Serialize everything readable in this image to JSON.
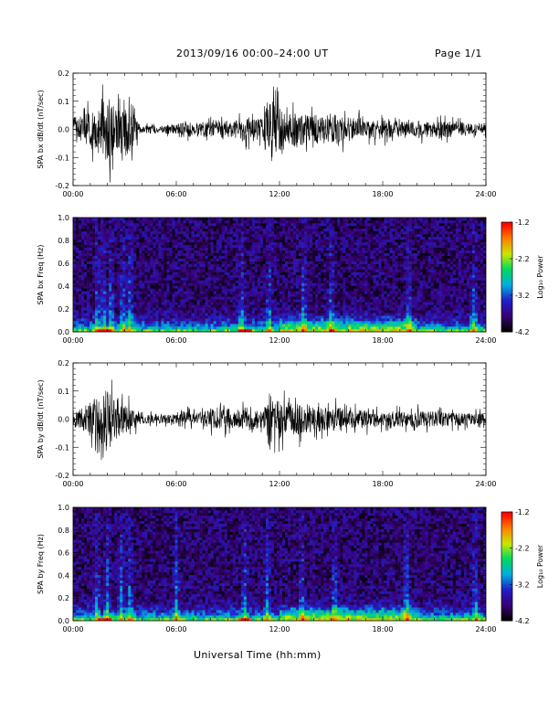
{
  "header": {
    "title": "2013/09/16  00:00–24:00 UT",
    "page": "Page 1/1"
  },
  "x_axis_title": "Universal Time (hh:mm)",
  "colorbar": {
    "label": "Log₁₀ Power",
    "ticks": [
      "-1.2",
      "-2.2",
      "-3.2",
      "-4.2"
    ],
    "range": [
      -4.2,
      -1.2
    ],
    "colormap": [
      "#000000",
      "#3a0078",
      "#2020c8",
      "#00b0e0",
      "#00d860",
      "#c8e800",
      "#ff8000",
      "#ff0000"
    ]
  },
  "chart_data": [
    {
      "type": "line",
      "panel": "bx-waveform",
      "ylabel": "SPA bx dB/dt (nT/sec)",
      "xlim": [
        0,
        24
      ],
      "ylim": [
        -0.2,
        0.2
      ],
      "x_ticks": [
        "00:00",
        "06:00",
        "12:00",
        "18:00",
        "24:00"
      ],
      "y_ticks": [
        "-0.2",
        "-0.1",
        "0.0",
        "0.1",
        "0.2"
      ],
      "envelope": {
        "x_hours": [
          0.0,
          0.5,
          1.0,
          1.5,
          2.0,
          2.5,
          3.0,
          3.5,
          4.0,
          4.5,
          5.0,
          5.5,
          6.0,
          6.5,
          7.0,
          7.5,
          8.0,
          8.5,
          9.0,
          9.5,
          10.0,
          10.5,
          11.0,
          11.5,
          12.0,
          12.5,
          13.0,
          13.5,
          14.0,
          14.5,
          15.0,
          15.5,
          16.0,
          16.5,
          17.0,
          17.5,
          18.0,
          18.5,
          19.0,
          19.5,
          20.0,
          20.5,
          21.0,
          21.5,
          22.0,
          22.5,
          23.0,
          23.5,
          24.0
        ],
        "amplitude": [
          0.08,
          0.09,
          0.11,
          0.14,
          0.22,
          0.12,
          0.2,
          0.1,
          0.02,
          0.03,
          0.02,
          0.03,
          0.03,
          0.06,
          0.04,
          0.05,
          0.05,
          0.07,
          0.06,
          0.06,
          0.08,
          0.08,
          0.07,
          0.22,
          0.14,
          0.1,
          0.12,
          0.1,
          0.1,
          0.09,
          0.1,
          0.09,
          0.08,
          0.07,
          0.07,
          0.06,
          0.06,
          0.06,
          0.05,
          0.05,
          0.06,
          0.05,
          0.05,
          0.05,
          0.05,
          0.05,
          0.04,
          0.04,
          0.03
        ]
      }
    },
    {
      "type": "heatmap",
      "panel": "bx-spectrogram",
      "ylabel": "SPA bx Freq (Hz)",
      "xlim": [
        0,
        24
      ],
      "ylim": [
        0,
        1.0
      ],
      "x_ticks": [
        "00:00",
        "06:00",
        "12:00",
        "18:00",
        "24:00"
      ],
      "y_ticks": [
        "0.0",
        "0.2",
        "0.4",
        "0.6",
        "0.8",
        "1.0"
      ],
      "background_log_power": -3.8,
      "low_freq_band_log_power": -2.6,
      "bright_columns_hours": [
        1.4,
        1.8,
        2.2,
        2.9,
        3.3,
        9.8,
        11.4,
        13.4,
        15.0,
        19.5,
        23.3
      ]
    },
    {
      "type": "line",
      "panel": "by-waveform",
      "ylabel": "SPA by dB/dt (nT/sec)",
      "xlim": [
        0,
        24
      ],
      "ylim": [
        -0.2,
        0.2
      ],
      "x_ticks": [
        "00:00",
        "06:00",
        "12:00",
        "18:00",
        "24:00"
      ],
      "y_ticks": [
        "-0.2",
        "-0.1",
        "0.0",
        "0.1",
        "0.2"
      ],
      "envelope": {
        "x_hours": [
          0.0,
          0.5,
          1.0,
          1.5,
          2.0,
          2.5,
          3.0,
          3.5,
          4.0,
          4.5,
          5.0,
          5.5,
          6.0,
          6.5,
          7.0,
          7.5,
          8.0,
          8.5,
          9.0,
          9.5,
          10.0,
          10.5,
          11.0,
          11.5,
          12.0,
          12.5,
          13.0,
          13.5,
          14.0,
          14.5,
          15.0,
          15.5,
          16.0,
          16.5,
          17.0,
          17.5,
          18.0,
          18.5,
          19.0,
          19.5,
          20.0,
          20.5,
          21.0,
          21.5,
          22.0,
          22.5,
          23.0,
          23.5,
          24.0
        ],
        "amplitude": [
          0.06,
          0.07,
          0.12,
          0.16,
          0.22,
          0.14,
          0.1,
          0.07,
          0.03,
          0.03,
          0.03,
          0.03,
          0.05,
          0.05,
          0.04,
          0.05,
          0.06,
          0.06,
          0.07,
          0.06,
          0.08,
          0.07,
          0.06,
          0.22,
          0.12,
          0.1,
          0.1,
          0.1,
          0.09,
          0.08,
          0.07,
          0.08,
          0.07,
          0.06,
          0.06,
          0.06,
          0.05,
          0.05,
          0.05,
          0.05,
          0.06,
          0.05,
          0.05,
          0.05,
          0.05,
          0.04,
          0.04,
          0.04,
          0.03
        ]
      }
    },
    {
      "type": "heatmap",
      "panel": "by-spectrogram",
      "ylabel": "SPA by Freq (Hz)",
      "xlim": [
        0,
        24
      ],
      "ylim": [
        0,
        1.0
      ],
      "x_ticks": [
        "00:00",
        "06:00",
        "12:00",
        "18:00",
        "24:00"
      ],
      "y_ticks": [
        "0.0",
        "0.2",
        "0.4",
        "0.6",
        "0.8",
        "1.0"
      ],
      "background_log_power": -3.8,
      "low_freq_band_log_power": -2.6,
      "bright_columns_hours": [
        1.4,
        2.0,
        2.8,
        3.3,
        6.0,
        10.0,
        11.3,
        13.3,
        15.2,
        19.4,
        23.4
      ]
    }
  ]
}
